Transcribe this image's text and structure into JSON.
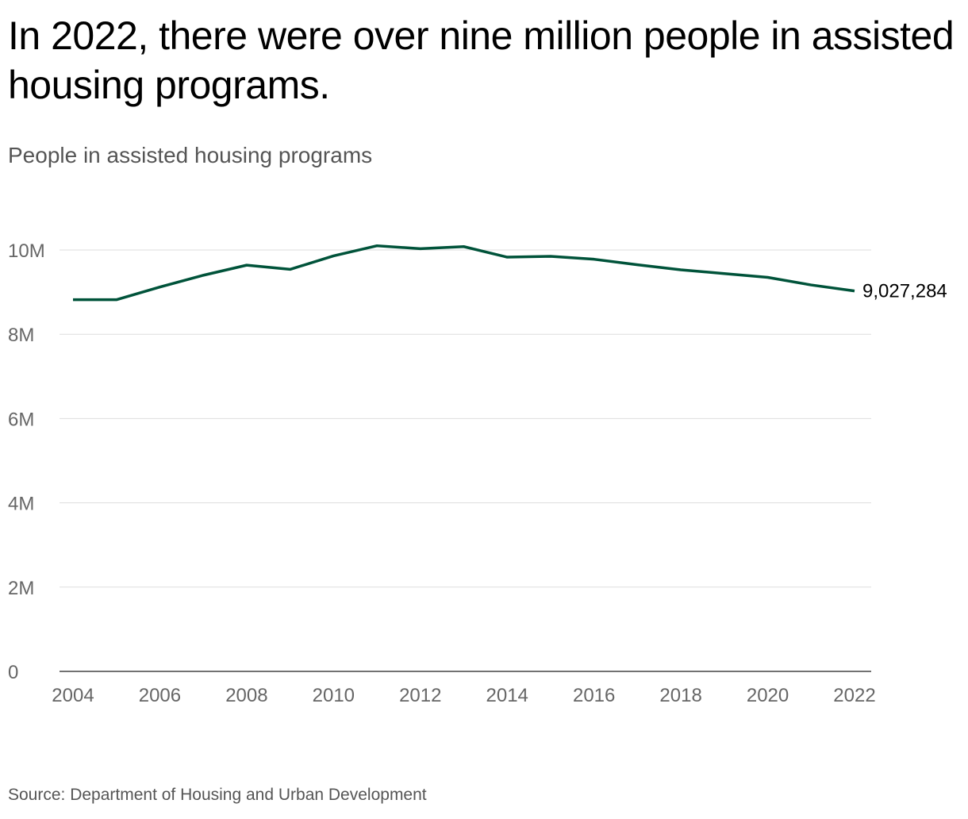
{
  "title": "In 2022, there were over nine million people in assisted housing programs.",
  "subtitle": "People in assisted housing programs",
  "source": "Source: Department of Housing and Urban Development",
  "chart_data": {
    "type": "line",
    "title": "In 2022, there were over nine million people in assisted housing programs.",
    "ylabel": "People in assisted housing programs",
    "x": [
      2004,
      2005,
      2006,
      2007,
      2008,
      2009,
      2010,
      2011,
      2012,
      2013,
      2014,
      2015,
      2016,
      2017,
      2018,
      2019,
      2020,
      2021,
      2022
    ],
    "series": [
      {
        "values": [
          8820000,
          8820000,
          9120000,
          9400000,
          9640000,
          9540000,
          9860000,
          10100000,
          10030000,
          10080000,
          9830000,
          9850000,
          9780000,
          9650000,
          9530000,
          9440000,
          9350000,
          9170000,
          9027284
        ],
        "color": "#00533a"
      }
    ],
    "end_label": "9,027,284",
    "xlim": [
      2004,
      2022
    ],
    "ylim": [
      0,
      10000000
    ],
    "x_ticks": [
      "2004",
      "2006",
      "2008",
      "2010",
      "2012",
      "2014",
      "2016",
      "2018",
      "2020",
      "2022"
    ],
    "y_ticks": [
      {
        "value": 0,
        "label": "0"
      },
      {
        "value": 2000000,
        "label": "2M"
      },
      {
        "value": 4000000,
        "label": "4M"
      },
      {
        "value": 6000000,
        "label": "6M"
      },
      {
        "value": 8000000,
        "label": "8M"
      },
      {
        "value": 10000000,
        "label": "10M"
      }
    ],
    "grid": true,
    "legend": "none"
  }
}
